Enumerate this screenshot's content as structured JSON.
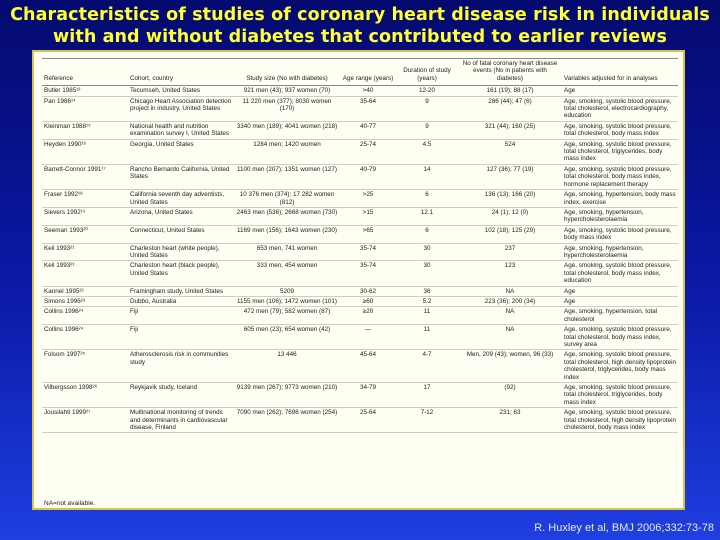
{
  "title": "Characteristics of studies of coronary heart disease risk in individuals with and without diabetes that contributed to earlier reviews",
  "headers": [
    "Reference",
    "Cohort, country",
    "Study size (No with diabetes)",
    "Age range (years)",
    "Duration of study (years)",
    "No of fatal coronary heart disease events (No in patients with diabetes)",
    "Variables adjusted for in analyses"
  ],
  "rows": [
    [
      "Butler 1985¹³",
      "Tecumseh, United States",
      "921 men (43); 937 women (70)",
      ">40",
      "12-20",
      "161 (19); 88 (17)",
      "Age"
    ],
    [
      "Pan 1986¹⁴",
      "Chicago Heart Association detection project in industry, United States",
      "11 220 men (377); 8030 women (170)",
      "35-64",
      "9",
      "286 (44); 47 (6)",
      "Age, smoking, systolic blood pressure, total cholesterol, electrocardiography, education"
    ],
    [
      "Kleinman 1988¹⁵",
      "National health and nutrition examination survey I, United States",
      "3340 men (189); 4041 women (218)",
      "40-77",
      "9",
      "321 (44); 160 (25)",
      "Age, smoking, systolic blood pressure, total cholesterol, body mass index"
    ],
    [
      "Heyden 1990¹⁶",
      "Georgia, United States",
      "1284 men; 1420 women",
      "25-74",
      "4.5",
      "524",
      "Age, smoking, systolic blood pressure, total cholesterol, triglycerides, body mass index"
    ],
    [
      "Barrett-Connor 1991¹⁷",
      "Rancho Bernardo California, United States",
      "1100 men (207); 1351 women (127)",
      "40-79",
      "14",
      "127 (36); 77 (19)",
      "Age, smoking, systolic blood pressure, total cholesterol, body mass index, hormone replacement therapy"
    ],
    [
      "Fraser 1992¹⁸",
      "California seventh day adventists, United States",
      "10 376 men (374); 17 282 women (812)",
      ">25",
      "6",
      "136 (13); 166 (20)",
      "Age, smoking, hypertension, body mass index, exercise"
    ],
    [
      "Sievers 1992¹⁹",
      "Arizona, United States",
      "2463 men (536); 2668 women (730)",
      ">15",
      "12.1",
      "24 (1); 12 (0)",
      "Age, smoking, hypertension, hypercholesterolaemia"
    ],
    [
      "Seeman 1993²⁰",
      "Connecticut, United States",
      "1169 men (156); 1643 women (230)",
      ">65",
      "6",
      "102 (18); 125 (29)",
      "Age, smoking, systolic blood pressure, body mass index"
    ],
    [
      "Keil 1993²¹",
      "Charleston heart (white people), United States",
      "653 men, 741 women",
      "35-74",
      "30",
      "237",
      "Age, smoking, hypertension, hypercholesterolaemia"
    ],
    [
      "Keil 1993²¹",
      "Charleston heart (black people), United States",
      "333 men, 454 women",
      "35-74",
      "30",
      "123",
      "Age, smoking, systolic blood pressure, total cholesterol, body mass index, education"
    ],
    [
      "Kannel 1995²²",
      "Framingham study, United States",
      "5209",
      "30-62",
      "36",
      "NA",
      "Age"
    ],
    [
      "Simons 1996²³",
      "Dubbo, Australia",
      "1155 men (106); 1472 women (101)",
      "≥60",
      "5.2",
      "223 (36); 200 (34)",
      "Age"
    ],
    [
      "Collins 1996²⁴",
      "Fiji",
      "472 men (79); 582 women (87)",
      "≥20",
      "11",
      "NA",
      "Age, smoking, hypertension, total cholesterol"
    ],
    [
      "Collins 1996²⁴",
      "Fiji",
      "605 men (23); 654 women (42)",
      "—",
      "11",
      "NA",
      "Age, smoking, systolic blood pressure, total cholesterol, body mass index, survey area"
    ],
    [
      "Folsom 1997²⁵",
      "Atherosclerosis risk in communities study",
      "13 446",
      "45-64",
      "4-7",
      "Men, 209 (43); women, 96 (33)",
      "Age, smoking, systolic blood pressure, total cholesterol, high density lipoprotein cholesterol, triglycerides, body mass index"
    ],
    [
      "Vilbergsson 1998²⁶",
      "Reykjavik study, Iceland",
      "9139 men (267); 9773 women (210)",
      "34-79",
      "17",
      "(92)",
      "Age, smoking, systolic blood pressure, total cholesterol, triglycerides, body mass index"
    ],
    [
      "Jousilahti 1999²⁷",
      "Multinational monitoring of trends and determinants in cardiovascular disease, Finland",
      "7090 men (262); 7696 women (254)",
      "25-64",
      "7-12",
      "231; 63",
      "Age, smoking, systolic blood pressure, total cholesterol, high density lipoprotein cholesterol, body mass index"
    ]
  ],
  "note": "NA=not available.",
  "source": "R. Huxley et al, BMJ  2006;332:73-78"
}
